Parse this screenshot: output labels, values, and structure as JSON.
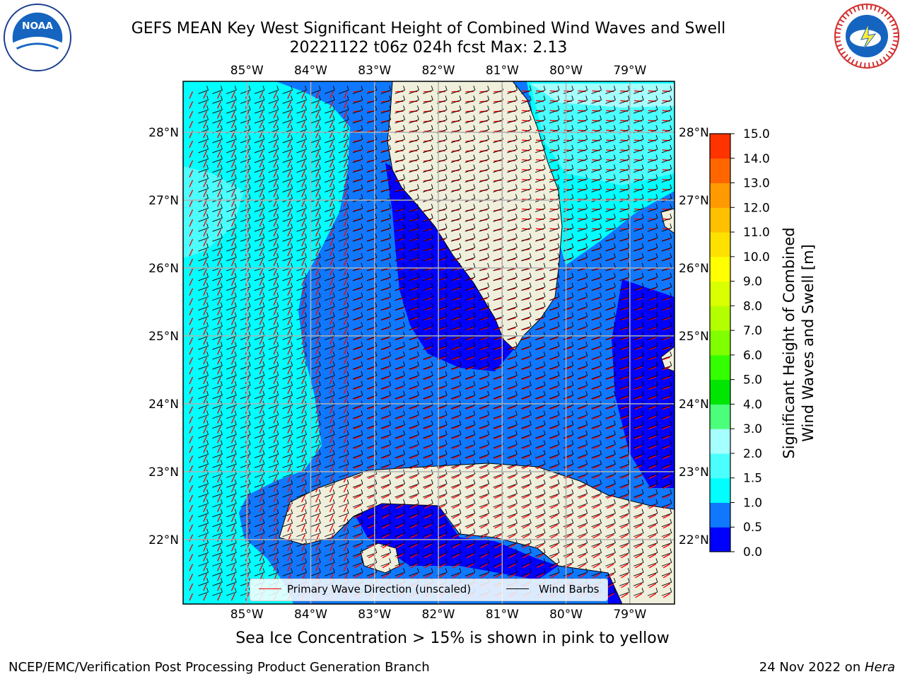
{
  "title": {
    "line1": "GEFS MEAN Key West Significant Height of Combined Wind Waves and Swell",
    "line2": "20221122 t06z 024h fcst   Max: 2.13"
  },
  "logos": {
    "left": {
      "icon": "noaa-logo",
      "text": "NOAA",
      "ring_text": "NATIONAL OCEANIC AND ATMOSPHERIC ADMINISTRATION · U.S. DEPARTMENT OF COMMERCE"
    },
    "right": {
      "icon": "nws-logo",
      "ring_text": "NATIONAL WEATHER SERVICE"
    }
  },
  "caption": "Sea Ice Concentration > 15% is shown in pink to yellow",
  "footer": {
    "left": "NCEP/EMC/Verification Post Processing Product Generation Branch",
    "right_prefix": "24 Nov 2022 on ",
    "right_host": "Hera"
  },
  "chart_data": {
    "type": "heatmap",
    "title": "GEFS MEAN Key West Significant Height of Combined Wind Waves and Swell",
    "subtitle": "20221122 t06z 024h fcst   Max: 2.13",
    "max_value": 2.13,
    "x_ticks": [
      "85°W",
      "84°W",
      "83°W",
      "82°W",
      "81°W",
      "80°W",
      "79°W"
    ],
    "y_ticks": [
      "28°N",
      "27°N",
      "26°N",
      "25°N",
      "24°N",
      "23°N",
      "22°N"
    ],
    "x_range": [
      -86.0,
      -78.3
    ],
    "y_range": [
      21.05,
      28.75
    ],
    "grid": true,
    "colorbar": {
      "label": "Significant Height of Combined Wind Waves and Swell [m]",
      "label_lines": [
        "Significant Height of Combined",
        "Wind Waves and Swell [m]"
      ],
      "ticks": [
        "0.0",
        "0.5",
        "1.0",
        "1.5",
        "2.0",
        "3.0",
        "4.0",
        "5.0",
        "6.0",
        "7.0",
        "8.0",
        "9.0",
        "10.0",
        "11.0",
        "12.0",
        "13.0",
        "14.0",
        "15.0"
      ],
      "colors": [
        "#0000ff",
        "#0f78ff",
        "#00ffff",
        "#4cffff",
        "#a6ffff",
        "#4cff7a",
        "#00e600",
        "#33ff00",
        "#80ff00",
        "#b3ff00",
        "#d9ff00",
        "#ffff00",
        "#ffe100",
        "#ffc000",
        "#ff9900",
        "#ff6600",
        "#ff3300",
        "#ff0000"
      ]
    },
    "legend": {
      "placement": "bottom-center",
      "entries": [
        {
          "label": "Primary Wave Direction (unscaled)",
          "color": "#ff0000"
        },
        {
          "label": "Wind Barbs",
          "color": "#000000"
        }
      ]
    },
    "colors": {
      "ocean_0_0_5": "#0000ff",
      "ocean_0_5_1_0": "#0f78ff",
      "ocean_1_0_1_5": "#00ffff",
      "ocean_1_5_2_0": "#4cffff",
      "ocean_2_0_3_0": "#a6ffff",
      "land": "#efefdc",
      "grid": "#b0b0b0"
    },
    "regions": [
      {
        "band": "1.0-1.5",
        "description": "western Gulf of Mexico and open waters west of 83.5°W"
      },
      {
        "band": "1.5-2.0",
        "description": "northwest Gulf near 27°N 85°W and Atlantic east of Florida north of 26.5°N"
      },
      {
        "band": "0.5-1.0",
        "description": "eastern Gulf, Florida Straits, and Atlantic near the Bahamas"
      },
      {
        "band": "0-0.5",
        "description": "southwest Florida coast, Florida Keys, near Cuba, and east of 79°W near Bahamas"
      }
    ]
  }
}
